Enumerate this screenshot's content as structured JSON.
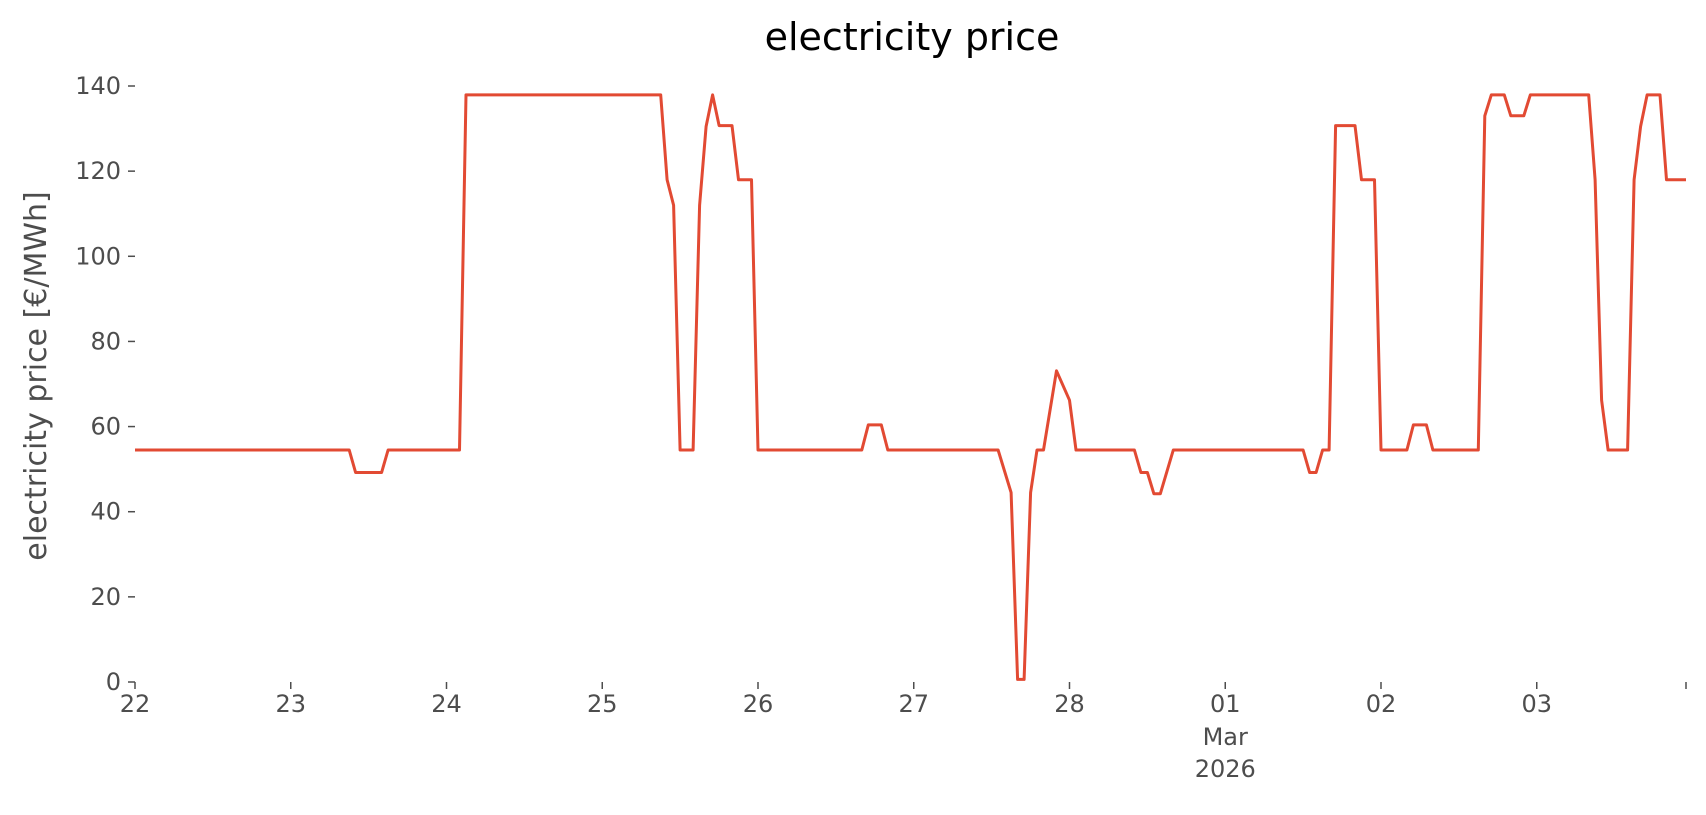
{
  "chart_data": {
    "type": "line",
    "title": "electricity price",
    "xlabel": "",
    "ylabel": "electricity price [€/MWh]",
    "ylim": [
      0,
      140
    ],
    "xlim": [
      "2026-02-22T00:00",
      "2026-03-03T23:00"
    ],
    "yticks": [
      0,
      20,
      40,
      60,
      80,
      100,
      120,
      140
    ],
    "xticks": [
      {
        "t": "2026-02-22T00:00",
        "label": "22"
      },
      {
        "t": "2026-02-23T00:00",
        "label": "23"
      },
      {
        "t": "2026-02-24T00:00",
        "label": "24"
      },
      {
        "t": "2026-02-25T00:00",
        "label": "25"
      },
      {
        "t": "2026-02-26T00:00",
        "label": "26"
      },
      {
        "t": "2026-02-27T00:00",
        "label": "27"
      },
      {
        "t": "2026-02-28T00:00",
        "label": "28"
      },
      {
        "t": "2026-03-01T00:00",
        "label": "01",
        "sublabels": [
          "Mar",
          "2026"
        ]
      },
      {
        "t": "2026-03-02T00:00",
        "label": "02"
      },
      {
        "t": "2026-03-03T00:00",
        "label": "03"
      }
    ],
    "grid": false,
    "colors": {
      "line": "#e24a33",
      "axis_text": "#4d4d4d"
    },
    "series": [
      {
        "x": [
          "2026-02-22T00:00",
          "2026-02-23T09:00",
          "2026-02-23T10:00",
          "2026-02-23T14:00",
          "2026-02-23T15:00",
          "2026-02-24T02:00",
          "2026-02-24T03:00",
          "2026-02-25T09:00",
          "2026-02-25T10:00",
          "2026-02-25T11:00",
          "2026-02-25T12:00",
          "2026-02-25T14:00",
          "2026-02-25T15:00",
          "2026-02-25T16:00",
          "2026-02-25T17:00",
          "2026-02-25T18:00",
          "2026-02-25T20:00",
          "2026-02-25T21:00",
          "2026-02-25T23:00",
          "2026-02-26T00:00",
          "2026-02-26T16:00",
          "2026-02-26T17:00",
          "2026-02-26T19:00",
          "2026-02-26T20:00",
          "2026-02-27T13:00",
          "2026-02-27T15:00",
          "2026-02-27T16:00",
          "2026-02-27T17:00",
          "2026-02-27T18:00",
          "2026-02-27T19:00",
          "2026-02-27T20:00",
          "2026-02-27T22:00",
          "2026-02-28T00:00",
          "2026-02-28T01:00",
          "2026-02-28T10:00",
          "2026-02-28T11:00",
          "2026-02-28T12:00",
          "2026-02-28T13:00",
          "2026-02-28T14:00",
          "2026-02-28T16:00",
          "2026-03-01T12:00",
          "2026-03-01T13:00",
          "2026-03-01T14:00",
          "2026-03-01T15:00",
          "2026-03-01T16:00",
          "2026-03-01T17:00",
          "2026-03-01T20:00",
          "2026-03-01T21:00",
          "2026-03-01T23:00",
          "2026-03-02T00:00",
          "2026-03-02T04:00",
          "2026-03-02T05:00",
          "2026-03-02T07:00",
          "2026-03-02T08:00",
          "2026-03-02T15:00",
          "2026-03-02T16:00",
          "2026-03-02T17:00",
          "2026-03-02T19:00",
          "2026-03-02T20:00",
          "2026-03-02T22:00",
          "2026-03-02T23:00",
          "2026-03-03T08:00",
          "2026-03-03T09:00",
          "2026-03-03T10:00",
          "2026-03-03T11:00",
          "2026-03-03T14:00",
          "2026-03-03T15:00",
          "2026-03-03T16:00",
          "2026-03-03T17:00",
          "2026-03-03T19:00",
          "2026-03-03T20:00",
          "2026-03-03T23:00"
        ],
        "y": [
          54.5,
          54.5,
          49.2,
          49.2,
          54.5,
          54.5,
          137.9,
          137.9,
          118,
          112,
          54.5,
          54.5,
          112,
          130.5,
          137.9,
          130.7,
          130.7,
          118,
          118,
          54.5,
          54.5,
          60.4,
          60.4,
          54.5,
          54.5,
          44.5,
          0.6,
          0.6,
          44.5,
          54.5,
          54.5,
          73.1,
          66.2,
          54.5,
          54.5,
          49.2,
          49.2,
          44.2,
          44.2,
          54.5,
          54.5,
          49.2,
          49.2,
          54.5,
          54.5,
          130.7,
          130.7,
          118,
          118,
          54.5,
          54.5,
          60.4,
          60.4,
          54.5,
          54.5,
          133,
          137.9,
          137.9,
          133,
          133,
          137.9,
          137.9,
          118,
          66.2,
          54.5,
          54.5,
          118,
          130.5,
          137.9,
          137.9,
          118,
          118
        ]
      }
    ]
  }
}
